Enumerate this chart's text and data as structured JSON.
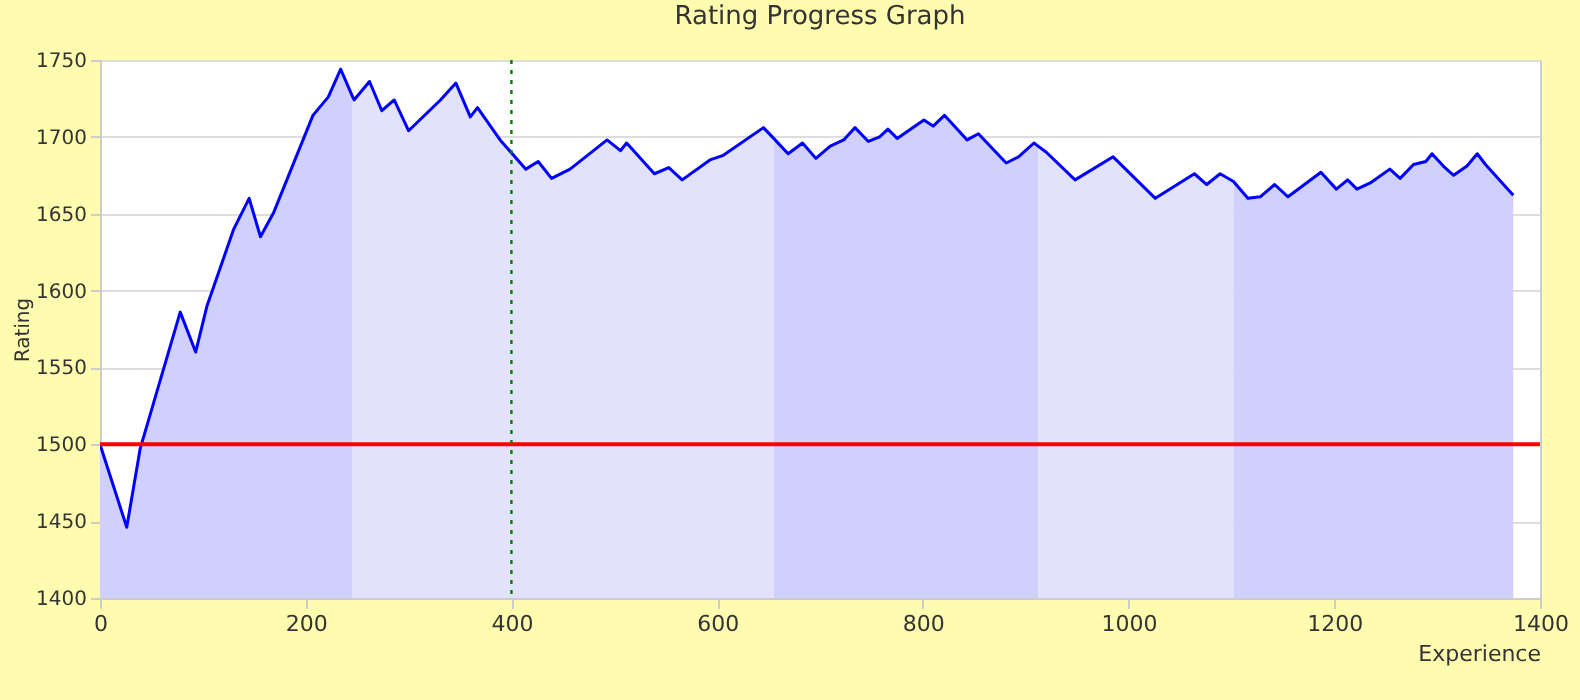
{
  "chart_data": {
    "type": "line",
    "title": "Rating Progress Graph",
    "xlabel": "Experience",
    "ylabel": "Rating",
    "xlim": [
      0,
      1400
    ],
    "ylim": [
      1400,
      1750
    ],
    "xticks": [
      0,
      200,
      400,
      600,
      800,
      1000,
      1200,
      1400
    ],
    "yticks": [
      1400,
      1450,
      1500,
      1550,
      1600,
      1650,
      1700,
      1750
    ],
    "grid": "y",
    "series": [
      {
        "type": "area",
        "color": "#d0d0fc",
        "x": [
          0,
          26,
          39,
          78,
          93,
          104,
          130,
          145,
          156,
          169,
          207,
          222,
          234,
          245
        ],
        "values": [
          1500,
          1446,
          1497,
          1586,
          1560,
          1590,
          1640,
          1660,
          1635,
          1651,
          1714,
          1726,
          1744,
          1727
        ]
      },
      {
        "type": "area",
        "color": "#e2e2fc",
        "x": [
          245,
          247,
          262,
          274,
          286,
          300,
          331,
          346,
          360,
          367,
          389,
          414,
          426,
          439,
          457,
          493,
          506,
          512,
          539,
          553,
          566,
          593,
          606,
          645,
          655
        ],
        "values": [
          1727,
          1724,
          1736,
          1717,
          1724,
          1704,
          1724,
          1735,
          1713,
          1719,
          1698,
          1679,
          1684,
          1673,
          1679,
          1698,
          1691,
          1696,
          1676,
          1680,
          1672,
          1685,
          1688,
          1706,
          1699
        ]
      },
      {
        "type": "area",
        "color": "#d0d0fc",
        "x": [
          655,
          669,
          683,
          696,
          710,
          723,
          734,
          747,
          758,
          766,
          775,
          801,
          810,
          821,
          843,
          854,
          881,
          893,
          908,
          912
        ],
        "values": [
          1699,
          1689,
          1696,
          1686,
          1694,
          1698,
          1706,
          1697,
          1700,
          1705,
          1699,
          1711,
          1707,
          1714,
          1698,
          1702,
          1683,
          1687,
          1696,
          1694
        ]
      },
      {
        "type": "area",
        "color": "#e2e2fc",
        "x": [
          912,
          920,
          948,
          985,
          1026,
          1064,
          1076,
          1089,
          1102
        ],
        "values": [
          1694,
          1690,
          1672,
          1687,
          1660,
          1676,
          1669,
          1676,
          1671
        ]
      },
      {
        "type": "area",
        "color": "#d0d0fc",
        "x": [
          1102,
          1116,
          1128,
          1142,
          1155,
          1187,
          1202,
          1213,
          1222,
          1235,
          1254,
          1264,
          1277,
          1289,
          1295,
          1306,
          1316,
          1329,
          1339,
          1347,
          1374
        ],
        "values": [
          1671,
          1660,
          1661,
          1669,
          1661,
          1677,
          1666,
          1672,
          1666,
          1670,
          1679,
          1673,
          1682,
          1684,
          1689,
          1681,
          1675,
          1681,
          1689,
          1682,
          1662
        ]
      },
      {
        "type": "line",
        "color": "#0000ff",
        "x": [
          0,
          26,
          39,
          78,
          93,
          104,
          130,
          145,
          156,
          169,
          207,
          222,
          234,
          245,
          247,
          262,
          274,
          286,
          300,
          331,
          346,
          360,
          367,
          389,
          414,
          426,
          439,
          457,
          493,
          506,
          512,
          539,
          553,
          566,
          593,
          606,
          645,
          655,
          669,
          683,
          696,
          710,
          723,
          734,
          747,
          758,
          766,
          775,
          801,
          810,
          821,
          843,
          854,
          881,
          893,
          908,
          912,
          920,
          948,
          985,
          1026,
          1064,
          1076,
          1089,
          1102,
          1116,
          1128,
          1142,
          1155,
          1187,
          1202,
          1213,
          1222,
          1235,
          1254,
          1264,
          1277,
          1289,
          1295,
          1306,
          1316,
          1329,
          1339,
          1347,
          1374
        ],
        "values": [
          1500,
          1446,
          1497,
          1586,
          1560,
          1590,
          1640,
          1660,
          1635,
          1651,
          1714,
          1726,
          1744,
          1727,
          1724,
          1736,
          1717,
          1724,
          1704,
          1724,
          1735,
          1713,
          1719,
          1698,
          1679,
          1684,
          1673,
          1679,
          1698,
          1691,
          1696,
          1676,
          1680,
          1672,
          1685,
          1688,
          1706,
          1699,
          1689,
          1696,
          1686,
          1694,
          1698,
          1706,
          1697,
          1700,
          1705,
          1699,
          1711,
          1707,
          1714,
          1698,
          1702,
          1683,
          1687,
          1696,
          1694,
          1690,
          1672,
          1687,
          1660,
          1676,
          1669,
          1676,
          1671,
          1660,
          1661,
          1669,
          1661,
          1677,
          1666,
          1672,
          1666,
          1670,
          1679,
          1673,
          1682,
          1684,
          1689,
          1681,
          1675,
          1681,
          1689,
          1682,
          1662
        ]
      }
    ],
    "ref_lines": [
      {
        "axis": "y",
        "value": 1500,
        "color": "#ff0000",
        "line_style": "solid"
      },
      {
        "axis": "x",
        "value": 400,
        "color": "#008000",
        "line_style": "dotted"
      }
    ]
  }
}
